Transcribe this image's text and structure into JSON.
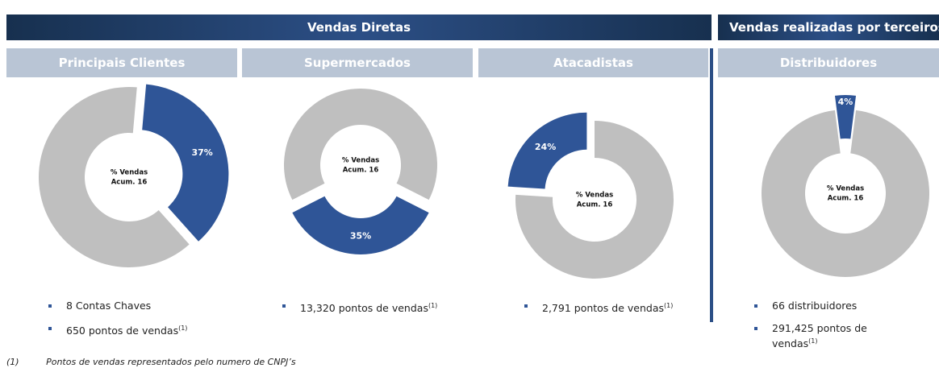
{
  "headers": {
    "direct": "Vendas Diretas",
    "third_party": "Vendas realizadas por terceiros"
  },
  "chart_data": [
    {
      "type": "pie",
      "donut": true,
      "title": "Principais Clientes",
      "values": [
        37,
        63
      ],
      "value_labels": [
        "37%",
        null
      ],
      "colors": [
        "#2f5597",
        "#bfbfbf"
      ],
      "center_label": [
        "% Vendas",
        "Acum. 16"
      ],
      "bullets": [
        {
          "text": "8 Contas Chaves"
        },
        {
          "text": "650 pontos de vendas",
          "note": "(1)"
        }
      ]
    },
    {
      "type": "pie",
      "donut": true,
      "title": "Supermercados",
      "values": [
        35,
        65
      ],
      "value_labels": [
        "35%",
        null
      ],
      "colors": [
        "#2f5597",
        "#bfbfbf"
      ],
      "center_label": [
        "% Vendas",
        "Acum. 16"
      ],
      "bullets": [
        {
          "text": "13,320 pontos de vendas",
          "note": "(1)"
        }
      ]
    },
    {
      "type": "pie",
      "donut": true,
      "title": "Atacadistas",
      "values": [
        24,
        76
      ],
      "value_labels": [
        "24%",
        null
      ],
      "colors": [
        "#2f5597",
        "#bfbfbf"
      ],
      "center_label": [
        "% Vendas",
        "Acum. 16"
      ],
      "bullets": [
        {
          "text": "2,791 pontos de vendas",
          "note": "(1)"
        }
      ]
    },
    {
      "type": "pie",
      "donut": true,
      "title": "Distribuidores",
      "values": [
        4,
        96
      ],
      "value_labels": [
        "4%",
        null
      ],
      "colors": [
        "#2f5597",
        "#bfbfbf"
      ],
      "center_label": [
        "% Vendas",
        "Acum. 16"
      ],
      "bullets": [
        {
          "text": "66 distribuidores"
        },
        {
          "text": "291,425 pontos de vendas",
          "note": "(1)"
        }
      ]
    }
  ],
  "footnote": {
    "marker": "(1)",
    "text": "Pontos de vendas representados pelo numero de CNPJ’s"
  }
}
